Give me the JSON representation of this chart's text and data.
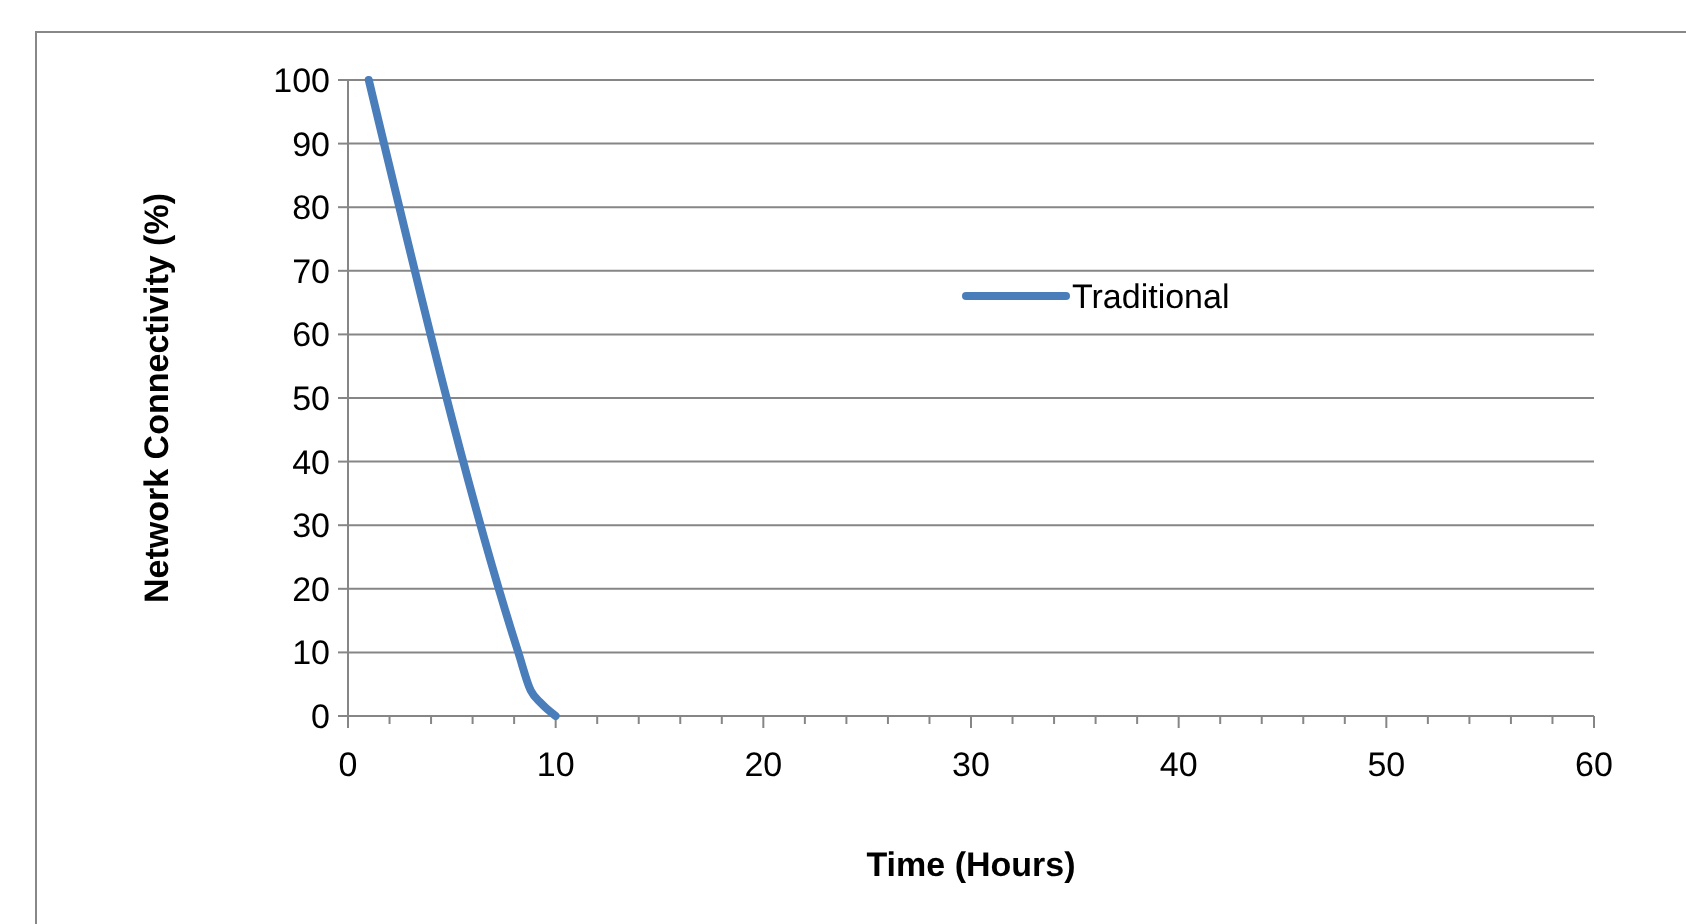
{
  "chart_data": {
    "type": "line",
    "xlabel": "Time (Hours)",
    "ylabel": "Network Connectivity (%)",
    "xlim": [
      0,
      60
    ],
    "xticks": [
      0,
      {
        "value": 2,
        "label": null
      },
      {
        "value": 4,
        "label": null
      },
      {
        "value": 6,
        "label": null
      },
      {
        "value": 8,
        "label": null
      },
      10,
      {
        "value": 12,
        "label": null
      },
      {
        "value": 14,
        "label": null
      },
      {
        "value": 16,
        "label": null
      },
      {
        "value": 18,
        "label": null
      },
      20,
      {
        "value": 22,
        "label": null
      },
      {
        "value": 24,
        "label": null
      },
      {
        "value": 26,
        "label": null
      },
      {
        "value": 28,
        "label": null
      },
      30,
      {
        "value": 32,
        "label": null
      },
      {
        "value": 34,
        "label": null
      },
      {
        "value": 36,
        "label": null
      },
      {
        "value": 38,
        "label": null
      },
      40,
      {
        "value": 42,
        "label": null
      },
      {
        "value": 44,
        "label": null
      },
      {
        "value": 46,
        "label": null
      },
      {
        "value": 48,
        "label": null
      },
      50,
      {
        "value": 52,
        "label": null
      },
      {
        "value": 54,
        "label": null
      },
      {
        "value": 56,
        "label": null
      },
      {
        "value": 58,
        "label": null
      },
      60
    ],
    "ylim": [
      0,
      100
    ],
    "yticks": [
      0,
      10,
      20,
      30,
      40,
      50,
      60,
      70,
      80,
      90,
      100
    ],
    "grid": "y",
    "legend": "right",
    "marker": "none",
    "line_style": "solid",
    "series": [
      {
        "name": "Traditional",
        "color": "#4a7ebb",
        "x": [
          1,
          8.2,
          8.8,
          9.3,
          10
        ],
        "values": [
          100,
          10,
          4,
          2,
          0
        ]
      }
    ]
  }
}
